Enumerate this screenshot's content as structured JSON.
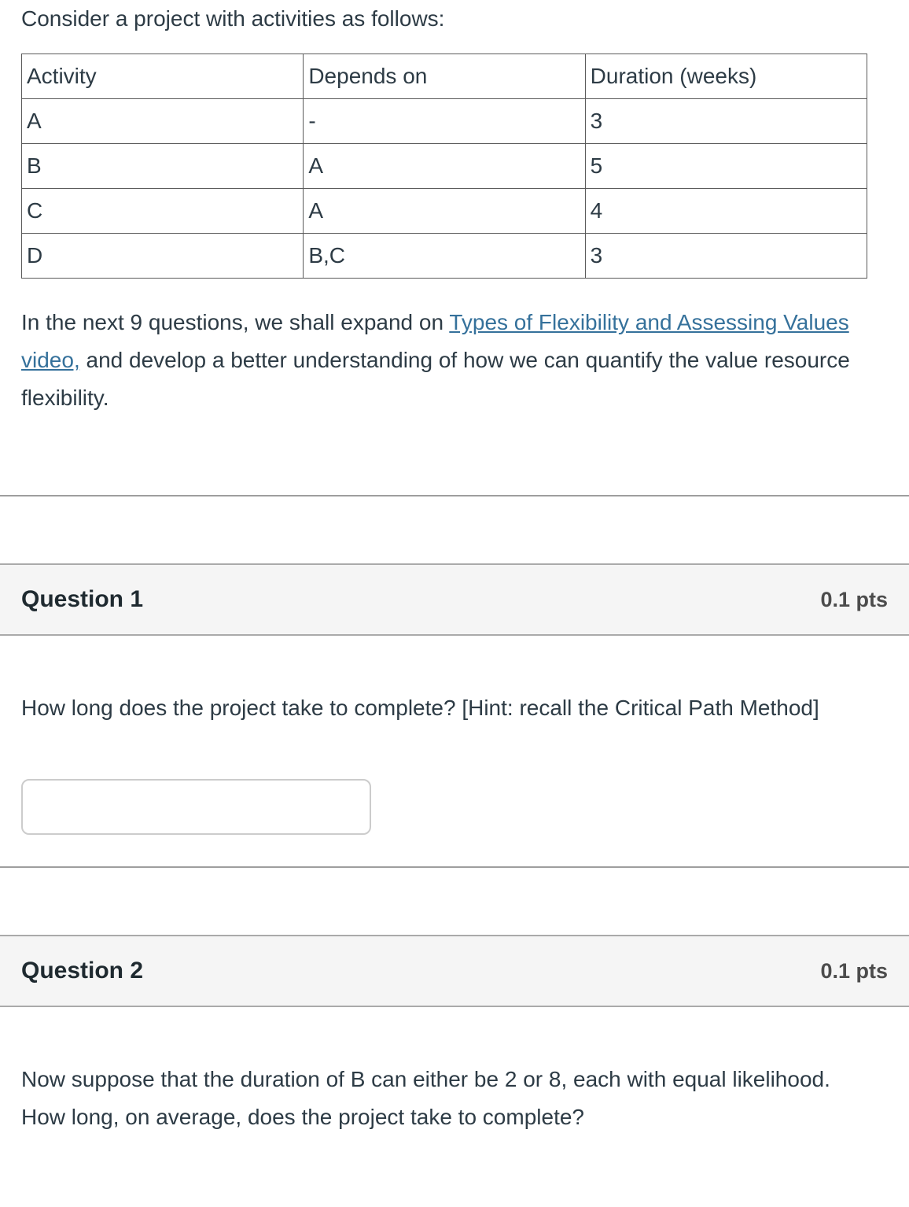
{
  "intro": {
    "lead": "Consider a project with activities as follows:",
    "table": {
      "headers": [
        "Activity",
        "Depends on",
        "Duration (weeks)"
      ],
      "rows": [
        [
          "A",
          "-",
          "3"
        ],
        [
          "B",
          "A",
          "5"
        ],
        [
          "C",
          "A",
          "4"
        ],
        [
          "D",
          "B,C",
          "3"
        ]
      ]
    },
    "paragraph": {
      "before_link": "In the next 9 questions, we shall expand on ",
      "link_text": "Types of Flexibility and Assessing Values video,",
      "after_link": " and develop a better understanding of how we can quantify the value resource flexibility."
    }
  },
  "questions": [
    {
      "title": "Question 1",
      "points": "0.1 pts",
      "body": "How long does the project take to complete? [Hint: recall the Critical Path Method]",
      "answer_value": "",
      "answer_placeholder": ""
    },
    {
      "title": "Question 2",
      "points": "0.1 pts",
      "body": "Now suppose that the duration of B can either be 2 or 8, each with equal likelihood. How long, on average, does the project take to complete?"
    }
  ],
  "colors": {
    "link": "#35719b",
    "question_header_bg": "#f5f5f5",
    "section_border": "#aaaaaa",
    "table_border": "#5a5a5a",
    "body_text": "#2d3b45",
    "points_text": "#4c4c4c"
  }
}
